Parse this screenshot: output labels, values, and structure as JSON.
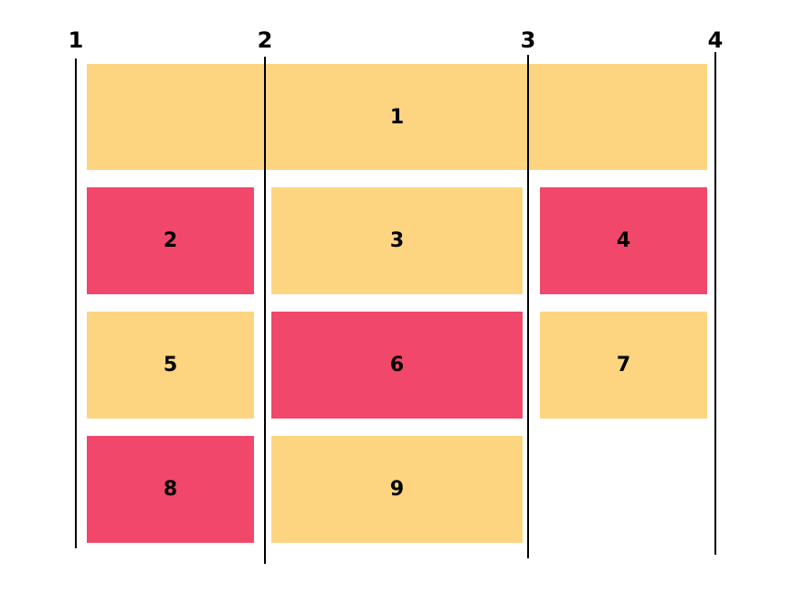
{
  "grid_lines": [
    {
      "label": "1"
    },
    {
      "label": "2"
    },
    {
      "label": "3"
    },
    {
      "label": "4"
    }
  ],
  "items": [
    {
      "label": "1",
      "color": "#fdd580"
    },
    {
      "label": "2",
      "color": "#f1476a"
    },
    {
      "label": "3",
      "color": "#fdd580"
    },
    {
      "label": "4",
      "color": "#f1476a"
    },
    {
      "label": "5",
      "color": "#fdd580"
    },
    {
      "label": "6",
      "color": "#f1476a"
    },
    {
      "label": "7",
      "color": "#fdd580"
    },
    {
      "label": "8",
      "color": "#f1476a"
    },
    {
      "label": "9",
      "color": "#fdd580"
    }
  ]
}
